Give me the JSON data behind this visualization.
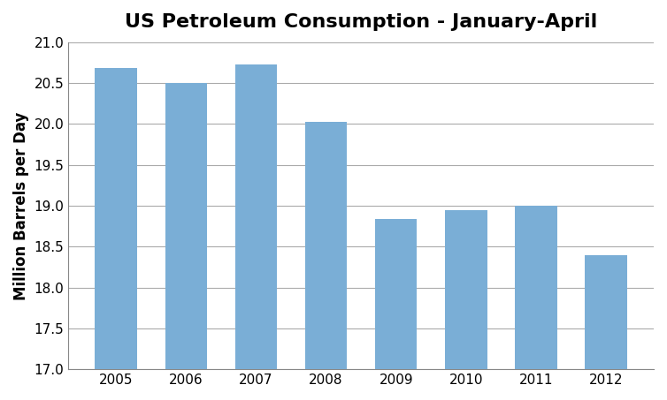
{
  "title": "US Petroleum Consumption - January-April",
  "ylabel": "Million Barrels per Day",
  "categories": [
    "2005",
    "2006",
    "2007",
    "2008",
    "2009",
    "2010",
    "2011",
    "2012"
  ],
  "values": [
    20.68,
    20.5,
    20.73,
    20.02,
    18.84,
    18.95,
    19.0,
    18.39
  ],
  "bar_color": "#7aaed6",
  "ylim": [
    17.0,
    21.0
  ],
  "yticks": [
    17.0,
    17.5,
    18.0,
    18.5,
    19.0,
    19.5,
    20.0,
    20.5,
    21.0
  ],
  "background_color": "#ffffff",
  "grid_color": "#aaaaaa",
  "title_fontsize": 16,
  "label_fontsize": 12,
  "tick_fontsize": 11
}
